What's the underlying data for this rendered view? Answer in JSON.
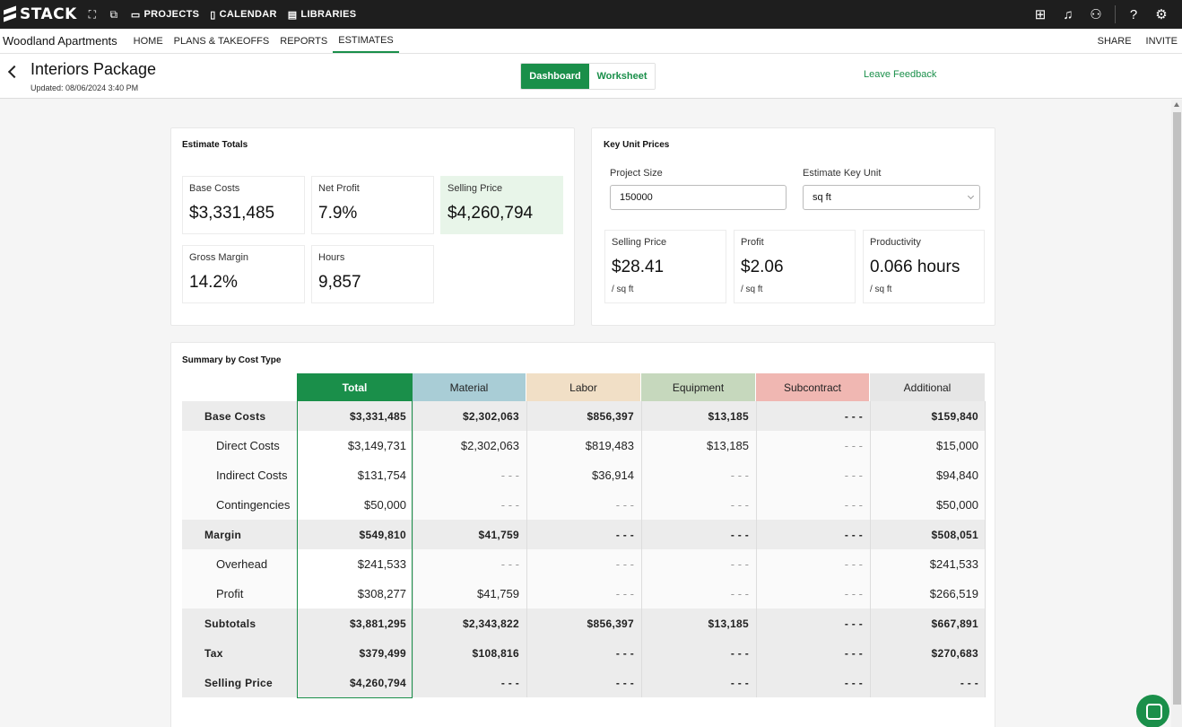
{
  "topbar": {
    "logo_text": "STACK",
    "nav": [
      {
        "label": "PROJECTS",
        "icon": "briefcase-icon"
      },
      {
        "label": "CALENDAR",
        "icon": "calendar-icon"
      },
      {
        "label": "LIBRARIES",
        "icon": "library-icon"
      }
    ],
    "right_icons": [
      "gift-icon",
      "bell-icon",
      "users-icon",
      "help-icon",
      "user-settings-icon"
    ]
  },
  "subnav": {
    "project_name": "Woodland Apartments",
    "tabs": [
      "HOME",
      "PLANS & TAKEOFFS",
      "REPORTS",
      "ESTIMATES"
    ],
    "active_tab": "ESTIMATES",
    "share_label": "SHARE",
    "invite_label": "INVITE"
  },
  "header": {
    "title": "Interiors Package",
    "updated": "Updated: 08/06/2024 3:40 PM",
    "dashboard_label": "Dashboard",
    "worksheet_label": "Worksheet",
    "feedback_label": "Leave Feedback"
  },
  "estimate_totals": {
    "title": "Estimate Totals",
    "base_costs": {
      "label": "Base Costs",
      "value": "$3,331,485"
    },
    "net_profit": {
      "label": "Net Profit",
      "value": "7.9%"
    },
    "selling_price": {
      "label": "Selling Price",
      "value": "$4,260,794"
    },
    "gross_margin": {
      "label": "Gross Margin",
      "value": "14.2%"
    },
    "hours": {
      "label": "Hours",
      "value": "9,857"
    }
  },
  "key_unit_prices": {
    "title": "Key Unit Prices",
    "project_size_label": "Project Size",
    "project_size_value": "150000",
    "key_unit_label": "Estimate Key Unit",
    "key_unit_value": "sq ft",
    "selling_price": {
      "label": "Selling Price",
      "value": "$28.41",
      "unit": "/ sq ft"
    },
    "profit": {
      "label": "Profit",
      "value": "$2.06",
      "unit": "/ sq ft"
    },
    "productivity": {
      "label": "Productivity",
      "value": "0.066 hours",
      "unit": "/ sq ft"
    }
  },
  "summary": {
    "title": "Summary by Cost Type",
    "columns": [
      "Total",
      "Material",
      "Labor",
      "Equipment",
      "Subcontract",
      "Additional"
    ],
    "column_colors": [
      "#1a8f4a",
      "#a9cdd6",
      "#f1dfc6",
      "#c6d8bd",
      "#f0b7b2",
      "#e6e6e6"
    ],
    "rows": [
      {
        "label": "Base Costs",
        "type": "group",
        "values": [
          "$3,331,485",
          "$2,302,063",
          "$856,397",
          "$13,185",
          "- - -",
          "$159,840"
        ]
      },
      {
        "label": "Direct Costs",
        "type": "sub",
        "values": [
          "$3,149,731",
          "$2,302,063",
          "$819,483",
          "$13,185",
          "- - -",
          "$15,000"
        ]
      },
      {
        "label": "Indirect Costs",
        "type": "sub",
        "values": [
          "$131,754",
          "- - -",
          "$36,914",
          "- - -",
          "- - -",
          "$94,840"
        ]
      },
      {
        "label": "Contingencies",
        "type": "sub",
        "values": [
          "$50,000",
          "- - -",
          "- - -",
          "- - -",
          "- - -",
          "$50,000"
        ]
      },
      {
        "label": "Margin",
        "type": "group",
        "values": [
          "$549,810",
          "$41,759",
          "- - -",
          "- - -",
          "- - -",
          "$508,051"
        ]
      },
      {
        "label": "Overhead",
        "type": "sub",
        "values": [
          "$241,533",
          "- - -",
          "- - -",
          "- - -",
          "- - -",
          "$241,533"
        ]
      },
      {
        "label": "Profit",
        "type": "sub",
        "values": [
          "$308,277",
          "$41,759",
          "- - -",
          "- - -",
          "- - -",
          "$266,519"
        ]
      },
      {
        "label": "Subtotals",
        "type": "group",
        "values": [
          "$3,881,295",
          "$2,343,822",
          "$856,397",
          "$13,185",
          "- - -",
          "$667,891"
        ]
      },
      {
        "label": "Tax",
        "type": "group",
        "values": [
          "$379,499",
          "$108,816",
          "- - -",
          "- - -",
          "- - -",
          "$270,683"
        ]
      },
      {
        "label": "Selling Price",
        "type": "group",
        "values": [
          "$4,260,794",
          "- - -",
          "- - -",
          "- - -",
          "- - -",
          "- - -"
        ]
      }
    ]
  },
  "chat_icon": "chat-icon"
}
